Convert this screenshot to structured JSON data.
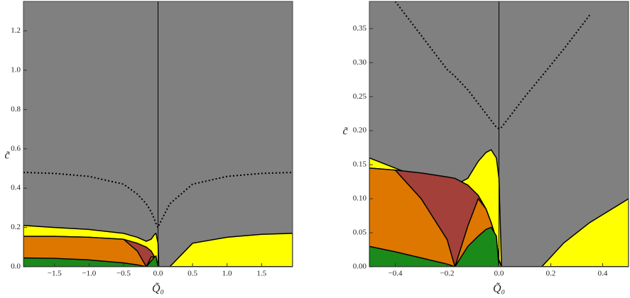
{
  "chart_data": [
    {
      "type": "area",
      "xlabel": "Q̃₀",
      "ylabel": "c̃",
      "x": [
        -1.95,
        -1.5,
        -1,
        -0.5,
        -0.3,
        -0.17,
        -0.1,
        -0.05,
        -0.03,
        0,
        0.01,
        0.17,
        0.5,
        1,
        1.5,
        1.95
      ],
      "series": [
        {
          "name": "yellow",
          "color": "#ffff00",
          "fill": true,
          "values": [
            0.21,
            0.2,
            0.19,
            0.17,
            0.15,
            0.13,
            0.14,
            0.165,
            0.17,
            0.12,
            0,
            0,
            0.12,
            0.15,
            0.165,
            0.17
          ]
        },
        {
          "name": "brown",
          "color": "#a3403a",
          "fill": true,
          "values": [
            0.155,
            0.155,
            0.15,
            0.14,
            0.12,
            0.1,
            0.08,
            0.05,
            0.03,
            0,
            0,
            0,
            0,
            0,
            0,
            0
          ]
        },
        {
          "name": "orange",
          "color": "#dd7700",
          "fill": true,
          "values": [
            0.155,
            0.155,
            0.15,
            0.14,
            0.08,
            0,
            0.05,
            0.05,
            0.03,
            0,
            0,
            0,
            0,
            0,
            0,
            0
          ]
        },
        {
          "name": "green",
          "color": "#1a8a1a",
          "fill": true,
          "values": [
            0.045,
            0.043,
            0.035,
            0.02,
            0.01,
            0,
            0.03,
            0.05,
            0.055,
            0,
            0,
            0,
            0,
            0,
            0,
            0
          ]
        },
        {
          "name": "dotted",
          "color": "#000000",
          "fill": false,
          "line_style": "dotted",
          "values": [
            0.48,
            0.475,
            0.46,
            0.42,
            0.37,
            0.32,
            0.28,
            0.24,
            0.22,
            0.2,
            0.21,
            0.32,
            0.42,
            0.46,
            0.475,
            0.48
          ]
        }
      ],
      "xlim": [
        -1.95,
        1.95
      ],
      "ylim": [
        0,
        1.35
      ],
      "xticks": [
        {
          "value": -1.5,
          "label": "−1.5"
        },
        {
          "value": -1,
          "label": "−1.0"
        },
        {
          "value": -0.5,
          "label": "−0.5"
        },
        {
          "value": 0,
          "label": "0.0"
        },
        {
          "value": 0.5,
          "label": "0.5"
        },
        {
          "value": 1,
          "label": "1.0"
        },
        {
          "value": 1.5,
          "label": "1.5"
        }
      ],
      "yticks": [
        {
          "value": 0,
          "label": "0.0"
        },
        {
          "value": 0.2,
          "label": "0.2"
        },
        {
          "value": 0.4,
          "label": "0.4"
        },
        {
          "value": 0.6,
          "label": "0.6"
        },
        {
          "value": 0.8,
          "label": "0.8"
        },
        {
          "value": 1,
          "label": "1.0"
        },
        {
          "value": 1.2,
          "label": "1.2"
        }
      ]
    },
    {
      "type": "area",
      "xlabel": "Q̃₀",
      "ylabel": "c̃",
      "x": [
        -0.5,
        -0.4,
        -0.3,
        -0.2,
        -0.17,
        -0.12,
        -0.08,
        -0.05,
        -0.03,
        -0.01,
        0,
        0.01,
        0.05,
        0.1,
        0.165,
        0.25,
        0.35,
        0.5
      ],
      "series": [
        {
          "name": "yellow",
          "color": "#ffff00",
          "fill": true,
          "values": [
            0.16,
            0.145,
            0.13,
            0.12,
            0.12,
            0.13,
            0.155,
            0.168,
            0.172,
            0.16,
            0.13,
            0,
            0,
            0,
            0,
            0.035,
            0.065,
            0.1
          ]
        },
        {
          "name": "brown",
          "color": "#a3403a",
          "fill": true,
          "values": [
            0.145,
            0.142,
            0.138,
            0.132,
            0.13,
            0.12,
            0.105,
            0.085,
            0.065,
            0.04,
            0.01,
            0,
            0,
            0,
            0,
            0,
            0,
            0
          ]
        },
        {
          "name": "orange",
          "color": "#dd7700",
          "fill": true,
          "values": [
            0.145,
            0.142,
            0.1,
            0.04,
            0,
            0.06,
            0.1,
            0.085,
            0.065,
            0.04,
            0.01,
            0,
            0,
            0,
            0,
            0,
            0,
            0
          ]
        },
        {
          "name": "green",
          "color": "#1a8a1a",
          "fill": true,
          "values": [
            0.03,
            0.022,
            0.013,
            0.004,
            0,
            0.03,
            0.045,
            0.055,
            0.058,
            0.045,
            0,
            0,
            0,
            0,
            0,
            0,
            0,
            0
          ]
        },
        {
          "name": "dotted",
          "color": "#000000",
          "fill": false,
          "line_style": "dotted",
          "values": [
            null,
            0.39,
            0.34,
            0.29,
            0.28,
            0.26,
            0.24,
            0.225,
            0.215,
            0.205,
            0.203,
            0.205,
            0.225,
            0.25,
            0.28,
            0.32,
            0.37,
            null
          ]
        }
      ],
      "xlim": [
        -0.5,
        0.5
      ],
      "ylim": [
        0,
        0.39
      ],
      "xticks": [
        {
          "value": -0.4,
          "label": "−0.4"
        },
        {
          "value": -0.2,
          "label": "−0.2"
        },
        {
          "value": 0,
          "label": "0.0"
        },
        {
          "value": 0.2,
          "label": "0.2"
        },
        {
          "value": 0.4,
          "label": "0.4"
        }
      ],
      "yticks": [
        {
          "value": 0,
          "label": "0.00"
        },
        {
          "value": 0.05,
          "label": "0.05"
        },
        {
          "value": 0.1,
          "label": "0.10"
        },
        {
          "value": 0.15,
          "label": "0.15"
        },
        {
          "value": 0.2,
          "label": "0.20"
        },
        {
          "value": 0.25,
          "label": "0.25"
        },
        {
          "value": 0.3,
          "label": "0.30"
        },
        {
          "value": 0.35,
          "label": "0.35"
        }
      ]
    }
  ]
}
